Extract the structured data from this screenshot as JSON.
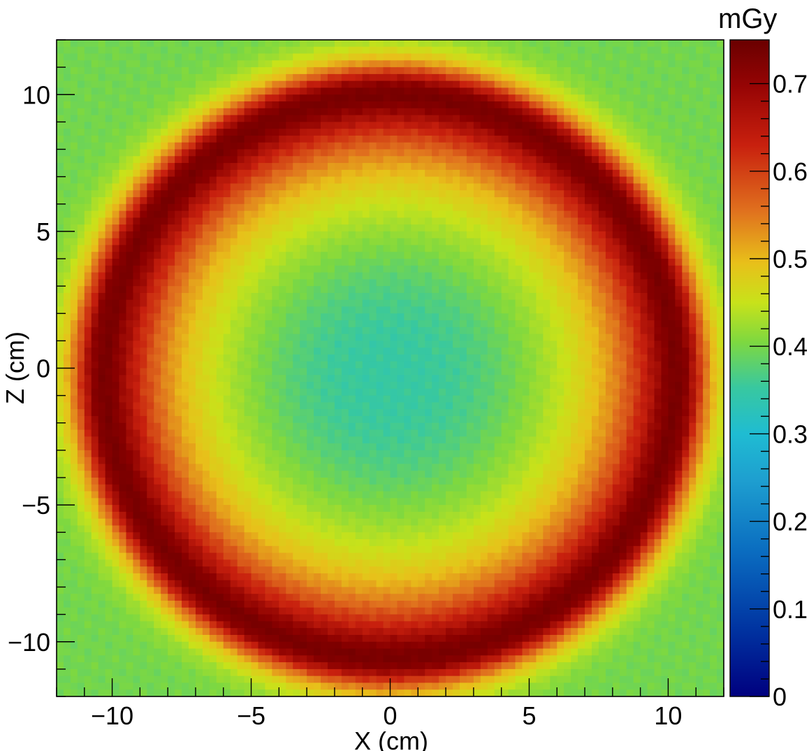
{
  "chart_data": {
    "type": "heatmap",
    "title": "",
    "xlabel": "X (cm)",
    "ylabel": "Z (cm)",
    "xlim": [
      -12,
      12
    ],
    "ylim": [
      -12,
      12
    ],
    "x_ticks": [
      -10,
      -5,
      0,
      5,
      10
    ],
    "y_ticks": [
      10,
      5,
      0,
      -5,
      -10
    ],
    "x_tick_labels": [
      "−10",
      "−5",
      "0",
      "5",
      "10"
    ],
    "y_tick_labels": [
      "10",
      "5",
      "0",
      "−5",
      "−10"
    ],
    "colorbar": {
      "unit": "mGy",
      "range": [
        0,
        0.75
      ],
      "ticks": [
        0.7,
        0.6,
        0.5,
        0.4,
        0.3,
        0.2,
        0.1,
        0
      ],
      "tick_labels": [
        "0.7",
        "0.6",
        "0.5",
        "0.4",
        "0.3",
        "0.2",
        "0.1",
        "0"
      ],
      "palette": [
        "#00007f",
        "#0040b0",
        "#1080c8",
        "#1fbcd2",
        "#38c8a0",
        "#7ed840",
        "#c8e21a",
        "#e8c01a",
        "#e0701e",
        "#c8200e",
        "#8a0000",
        "#6a0000"
      ]
    },
    "dose_profile": {
      "description_keys": [
        "center_value",
        "ring_peak_value",
        "ring_radius_cm",
        "edge_value"
      ],
      "center_value": 0.27,
      "ring_peak_value": 0.72,
      "ring_radius_cm": 10.2,
      "edge_value": 0.33
    }
  }
}
